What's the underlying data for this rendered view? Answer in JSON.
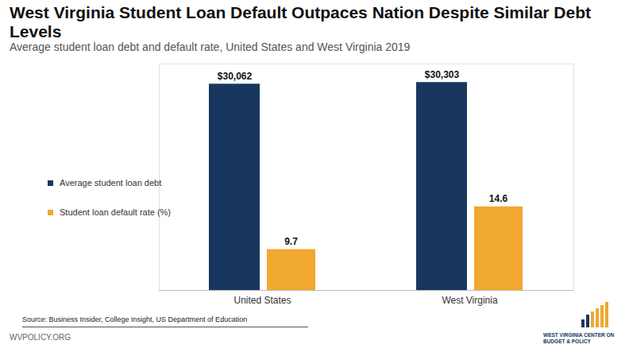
{
  "chart_data": {
    "type": "bar",
    "title": "West Virginia Student Loan Default Outpaces Nation Despite Similar Debt Levels",
    "subtitle": "Average student loan debt and default rate, United States and West Virginia 2019",
    "categories": [
      "United States",
      "West Virginia"
    ],
    "series": [
      {
        "name": "Average student loan debt",
        "color": "#17375e",
        "values": [
          30062,
          30303
        ],
        "value_labels": [
          "$30,062",
          "$30,303"
        ]
      },
      {
        "name": "Student loan default rate (%)",
        "color": "#f0a830",
        "values": [
          9.7,
          14.6
        ],
        "axis": "y2"
      }
    ],
    "ylim": [
      0,
      33000
    ],
    "y2lim": [
      5,
      31
    ],
    "data_labels": true,
    "tick_labels": "x",
    "legend": "left",
    "annotations": [
      "Source: Business Insider, College Insight, US Department of Education",
      "WVPOLICY.ORG",
      "WEST VIRGINIA CENTER ON BUDGET & POLICY"
    ]
  }
}
